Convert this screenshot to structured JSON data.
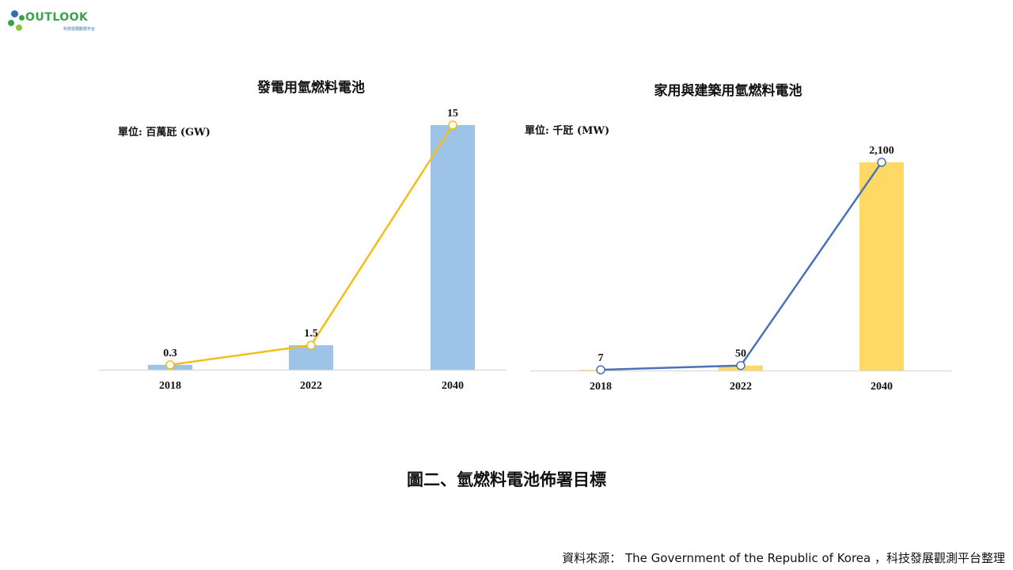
{
  "logo": {
    "text": "OUTLOOK",
    "subtitle": "科技發展觀測平台",
    "colors": [
      "#3aa24a",
      "#2c6fb4",
      "#8cc63f"
    ]
  },
  "chart_data": [
    {
      "type": "bar",
      "title": "發電用氫燃料電池",
      "unit_label": "單位: 百萬瓩 (GW)",
      "categories": [
        "2018",
        "2022",
        "2040"
      ],
      "values": [
        0.3,
        1.5,
        15
      ],
      "value_labels": [
        "0.3",
        "1.5",
        "15"
      ],
      "ylim": [
        0,
        15
      ],
      "grid": false,
      "legend": "none",
      "bar_color": "#9dc3e6",
      "line_color": "#f2be1a",
      "marker_fill": "#ffffff",
      "overlay_line": true
    },
    {
      "type": "bar",
      "title": "家用與建築用氫燃料電池",
      "unit_label": "單位: 千瓩 (MW)",
      "categories": [
        "2018",
        "2022",
        "2040"
      ],
      "values": [
        7,
        50,
        2100
      ],
      "value_labels": [
        "7",
        "50",
        "2,100"
      ],
      "ylim": [
        0,
        2300
      ],
      "grid": false,
      "legend": "none",
      "bar_color": "#ffd966",
      "line_color": "#4a72b8",
      "marker_fill": "#ffffff",
      "overlay_line": true
    }
  ],
  "caption": "圖二、氫燃料電池佈署目標",
  "source": "資料來源： The Government of the Republic of Korea ，科技發展觀測平台整理"
}
